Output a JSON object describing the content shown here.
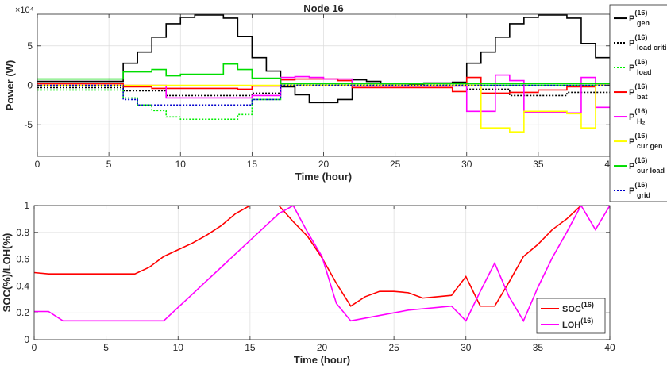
{
  "chart_data": [
    {
      "type": "line",
      "title": "Node 16",
      "xlabel": "Time (hour)",
      "ylabel": "Power (W)",
      "y_multiplier": "×10⁴",
      "xlim": [
        0,
        40
      ],
      "ylim": [
        -9,
        9
      ],
      "xticks": [
        0,
        5,
        10,
        15,
        20,
        25,
        30,
        35,
        40
      ],
      "yticks": [
        -5,
        0,
        5
      ],
      "grid": true,
      "legend_position": "outside-right",
      "series": [
        {
          "name": "P_gen^(16)",
          "label_main": "P",
          "label_sup": "(16)",
          "label_sub": "gen",
          "color": "#000000",
          "dash": "solid",
          "x": [
            0,
            6,
            6,
            7,
            7,
            8,
            8,
            9,
            9,
            10,
            10,
            11,
            11,
            12,
            12,
            13,
            13,
            14,
            14,
            15,
            15,
            16,
            16,
            17,
            17,
            18,
            18,
            19,
            19,
            21,
            21,
            22,
            22,
            23,
            23,
            24,
            24,
            26,
            26,
            27,
            27,
            29,
            29,
            30,
            30,
            31,
            31,
            32,
            32,
            33,
            33,
            34,
            34,
            35,
            35,
            37,
            37,
            38,
            38,
            39,
            39,
            40
          ],
          "y": [
            0.5,
            0.5,
            2.8,
            2.8,
            4.2,
            4.2,
            6.1,
            6.1,
            7.8,
            7.8,
            8.6,
            8.6,
            8.9,
            8.9,
            8.9,
            8.9,
            8.5,
            8.5,
            6.2,
            6.2,
            3.5,
            3.5,
            1.8,
            1.8,
            -0.2,
            -0.2,
            -1.2,
            -1.2,
            -2.2,
            -2.2,
            -1.8,
            -1.8,
            0.7,
            0.7,
            0.5,
            0.5,
            0.2,
            0.2,
            0.1,
            0.1,
            0.3,
            0.3,
            0.4,
            0.4,
            2.8,
            2.8,
            4.2,
            4.2,
            6.1,
            6.1,
            7.8,
            7.8,
            8.6,
            8.6,
            8.9,
            8.9,
            8.5,
            8.5,
            5.3,
            5.3,
            3.5,
            3.5
          ]
        },
        {
          "name": "P_load critical^(16)",
          "label_main": "P",
          "label_sup": "(16)",
          "label_sub": "load critical",
          "color": "#000000",
          "dash": "dot",
          "x": [
            0,
            6,
            6,
            9,
            9,
            15,
            15,
            17,
            17,
            30,
            30,
            33,
            33,
            37,
            37,
            40
          ],
          "y": [
            -0.3,
            -0.3,
            -0.7,
            -0.7,
            -1.3,
            -1.3,
            -1.0,
            -1.0,
            0.2,
            0.2,
            -0.5,
            -0.5,
            -1.3,
            -1.3,
            -0.9,
            -0.9
          ]
        },
        {
          "name": "P_load^(16)",
          "label_main": "P",
          "label_sup": "(16)",
          "label_sub": "load",
          "color": "#00ee00",
          "dash": "dot",
          "x": [
            0,
            6,
            6,
            7,
            7,
            8,
            8,
            9,
            9,
            10,
            10,
            14,
            14,
            15,
            15,
            17,
            17,
            30,
            30,
            40
          ],
          "y": [
            -0.6,
            -0.6,
            -1.6,
            -1.6,
            -2.5,
            -2.5,
            -3.2,
            -3.2,
            -4.0,
            -4.0,
            -4.3,
            -4.3,
            -3.7,
            -3.7,
            -1.8,
            -1.8,
            0.2,
            0.2,
            0,
            0
          ]
        },
        {
          "name": "P_bat^(16)",
          "label_main": "P",
          "label_sup": "(16)",
          "label_sub": "bat",
          "color": "#ff0000",
          "dash": "solid",
          "x": [
            0,
            6,
            6,
            8,
            8,
            14,
            14,
            15,
            15,
            17,
            17,
            18,
            18,
            21,
            21,
            22,
            22,
            29,
            29,
            30,
            30,
            31,
            31,
            33,
            33,
            35,
            35,
            37,
            37,
            39,
            39,
            40
          ],
          "y": [
            0.2,
            0.2,
            -0.2,
            -0.2,
            -0.4,
            -0.4,
            -0.5,
            -0.5,
            -0.1,
            -0.1,
            0.7,
            0.7,
            0.8,
            0.8,
            0.6,
            0.6,
            -0.3,
            -0.3,
            -0.8,
            -0.8,
            1.0,
            1.0,
            -1.0,
            -1.0,
            -0.9,
            -0.9,
            -0.6,
            -0.6,
            -0.2,
            -0.2,
            0,
            0
          ]
        },
        {
          "name": "P_H2^(16)",
          "label_main": "P",
          "label_sup": "(16)",
          "label_sub": "H₂",
          "color": "#ff00ff",
          "dash": "solid",
          "x": [
            0,
            9,
            9,
            15,
            15,
            17,
            17,
            18,
            18,
            19,
            19,
            20,
            20,
            22,
            22,
            30,
            30,
            32,
            32,
            33,
            33,
            34,
            34,
            37,
            37,
            38,
            38,
            39,
            39,
            40
          ],
          "y": [
            0,
            0,
            -1.6,
            -1.6,
            -1.3,
            -1.3,
            1.0,
            1.0,
            1.1,
            1.1,
            1.0,
            1.0,
            0.8,
            0.8,
            -0.1,
            -0.1,
            -3.3,
            -3.3,
            1.3,
            1.3,
            0.6,
            0.6,
            -3.4,
            -3.4,
            -3.5,
            -3.5,
            1.0,
            1.0,
            -2.8,
            -2.8
          ]
        },
        {
          "name": "P_cur gen^(16)",
          "label_main": "P",
          "label_sup": "(16)",
          "label_sub": "cur gen",
          "color": "#ffff00",
          "dash": "solid",
          "x": [
            0,
            31,
            31,
            33,
            33,
            34,
            34,
            37,
            37,
            38,
            38,
            39,
            39,
            40
          ],
          "y": [
            0,
            0,
            -5.4,
            -5.4,
            -5.9,
            -5.9,
            -3.3,
            -3.3,
            -3.6,
            -3.6,
            -5.4,
            -5.4,
            0,
            0
          ]
        },
        {
          "name": "P_cur load^(16)",
          "label_main": "P",
          "label_sup": "(16)",
          "label_sub": "cur load",
          "color": "#00dd00",
          "dash": "solid",
          "x": [
            0,
            6,
            6,
            8,
            8,
            9,
            9,
            10,
            10,
            13,
            13,
            14,
            14,
            15,
            15,
            17,
            17,
            40
          ],
          "y": [
            0.8,
            0.8,
            1.7,
            1.7,
            2.0,
            2.0,
            1.2,
            1.2,
            1.4,
            1.4,
            2.7,
            2.7,
            2.0,
            2.0,
            0.9,
            0.9,
            0.2,
            0.2
          ]
        },
        {
          "name": "P_grid^(16)",
          "label_main": "P",
          "label_sup": "(16)",
          "label_sub": "grid",
          "color": "#0000cc",
          "dash": "dot",
          "x": [
            0,
            6,
            6,
            7,
            7,
            15,
            15,
            17,
            17,
            40
          ],
          "y": [
            0,
            0,
            -1.8,
            -1.8,
            -2.5,
            -2.5,
            -1.8,
            -1.8,
            0,
            0
          ]
        }
      ]
    },
    {
      "type": "line",
      "title": "",
      "xlabel": "Time (hour)",
      "ylabel": "SOC(%)/LOH(%)",
      "xlim": [
        0,
        40
      ],
      "ylim": [
        0,
        1
      ],
      "xticks": [
        0,
        5,
        10,
        15,
        20,
        25,
        30,
        35,
        40
      ],
      "yticks": [
        0,
        0.2,
        0.4,
        0.6,
        0.8,
        1
      ],
      "grid": true,
      "legend_position": "bottom-right",
      "series": [
        {
          "name": "SOC^(16)",
          "label_main": "SOC",
          "label_sup": "(16)",
          "color": "#ff0000",
          "x": [
            0,
            1,
            2,
            3,
            4,
            5,
            6,
            7,
            8,
            9,
            10,
            11,
            12,
            13,
            14,
            15,
            16,
            17,
            18,
            19,
            20,
            21,
            22,
            23,
            24,
            25,
            26,
            27,
            28,
            29,
            30,
            31,
            32,
            33,
            34,
            35,
            36,
            37,
            38,
            39,
            40
          ],
          "y": [
            0.5,
            0.49,
            0.49,
            0.49,
            0.49,
            0.49,
            0.49,
            0.49,
            0.54,
            0.62,
            0.67,
            0.72,
            0.78,
            0.85,
            0.94,
            1.0,
            1.0,
            1.0,
            0.88,
            0.77,
            0.61,
            0.42,
            0.25,
            0.32,
            0.36,
            0.36,
            0.35,
            0.31,
            0.32,
            0.33,
            0.47,
            0.25,
            0.25,
            0.43,
            0.62,
            0.71,
            0.82,
            0.9,
            1.0,
            1.0,
            1.0
          ]
        },
        {
          "name": "LOH^(16)",
          "label_main": "LOH",
          "label_sup": "(16)",
          "color": "#ff00ff",
          "x": [
            0,
            1,
            2,
            3,
            4,
            5,
            6,
            7,
            8,
            9,
            10,
            11,
            12,
            13,
            14,
            15,
            16,
            17,
            18,
            19,
            20,
            21,
            22,
            23,
            24,
            25,
            26,
            27,
            28,
            29,
            30,
            31,
            32,
            33,
            34,
            35,
            36,
            37,
            38,
            39,
            40
          ],
          "y": [
            0.21,
            0.21,
            0.14,
            0.14,
            0.14,
            0.14,
            0.14,
            0.14,
            0.14,
            0.14,
            0.24,
            0.34,
            0.44,
            0.54,
            0.64,
            0.74,
            0.84,
            0.94,
            1.0,
            0.8,
            0.62,
            0.27,
            0.14,
            0.16,
            0.18,
            0.2,
            0.22,
            0.23,
            0.24,
            0.25,
            0.14,
            0.36,
            0.57,
            0.32,
            0.14,
            0.39,
            0.61,
            0.8,
            1.0,
            0.82,
            1.0
          ]
        }
      ]
    }
  ]
}
